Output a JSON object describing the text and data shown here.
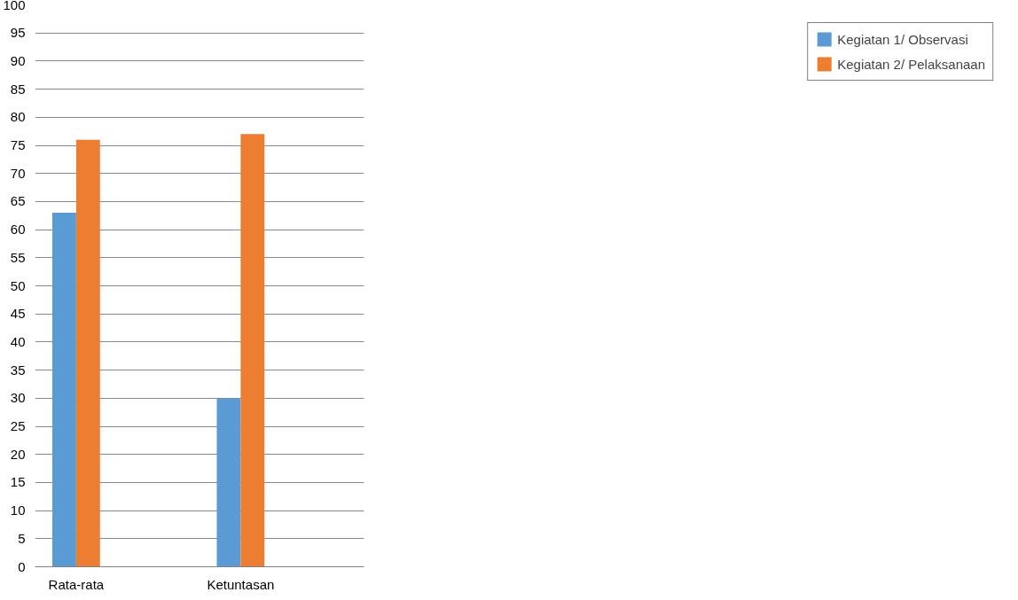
{
  "chart_data": {
    "type": "bar",
    "categories": [
      "Rata-rata",
      null,
      "Ketuntasan",
      null
    ],
    "series": [
      {
        "name": "Kegiatan 1/ Observasi",
        "color": "#5b9bd5",
        "values": [
          63,
          null,
          30,
          null
        ]
      },
      {
        "name": "Kegiatan 2/ Pelaksanaan",
        "color": "#ed7d31",
        "values": [
          76,
          null,
          77,
          null
        ]
      }
    ],
    "ylim": [
      0,
      100
    ],
    "yticks": [
      0,
      5,
      10,
      15,
      20,
      25,
      30,
      35,
      40,
      45,
      50,
      55,
      60,
      65,
      70,
      75,
      80,
      85,
      90,
      95,
      100
    ],
    "grid": "y",
    "legend": "right"
  }
}
